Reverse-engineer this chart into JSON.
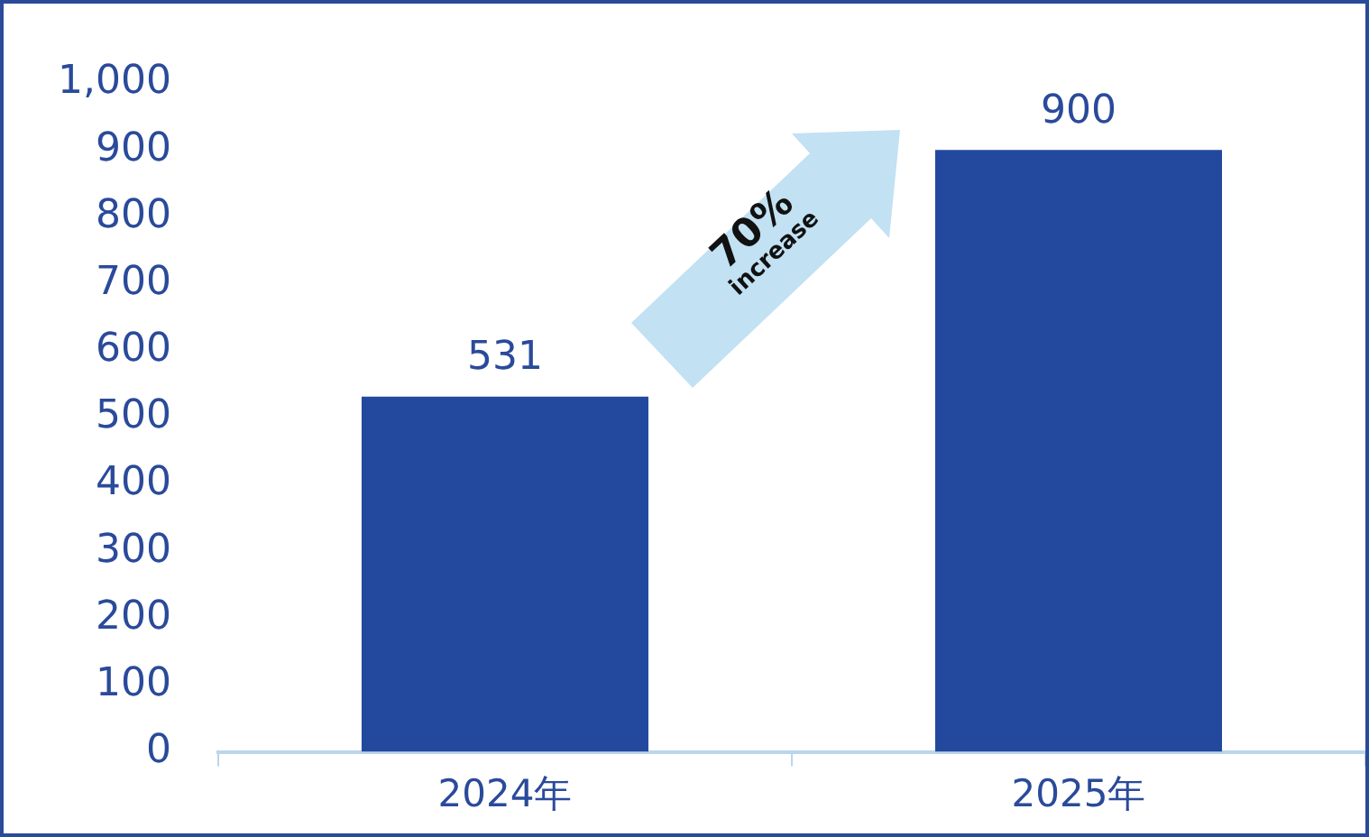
{
  "chart_data": {
    "type": "bar",
    "categories": [
      "2024年",
      "2025年"
    ],
    "values": [
      531,
      900
    ],
    "color": "#22499e",
    "ylim": [
      0,
      1000
    ],
    "yticks": [
      0,
      100,
      200,
      300,
      400,
      500,
      600,
      700,
      800,
      900,
      {
        "value": 1000,
        "label": "1,000"
      }
    ],
    "grid": false,
    "legend": false,
    "data_labels": true,
    "annotations": [
      "70%",
      "increase"
    ]
  }
}
